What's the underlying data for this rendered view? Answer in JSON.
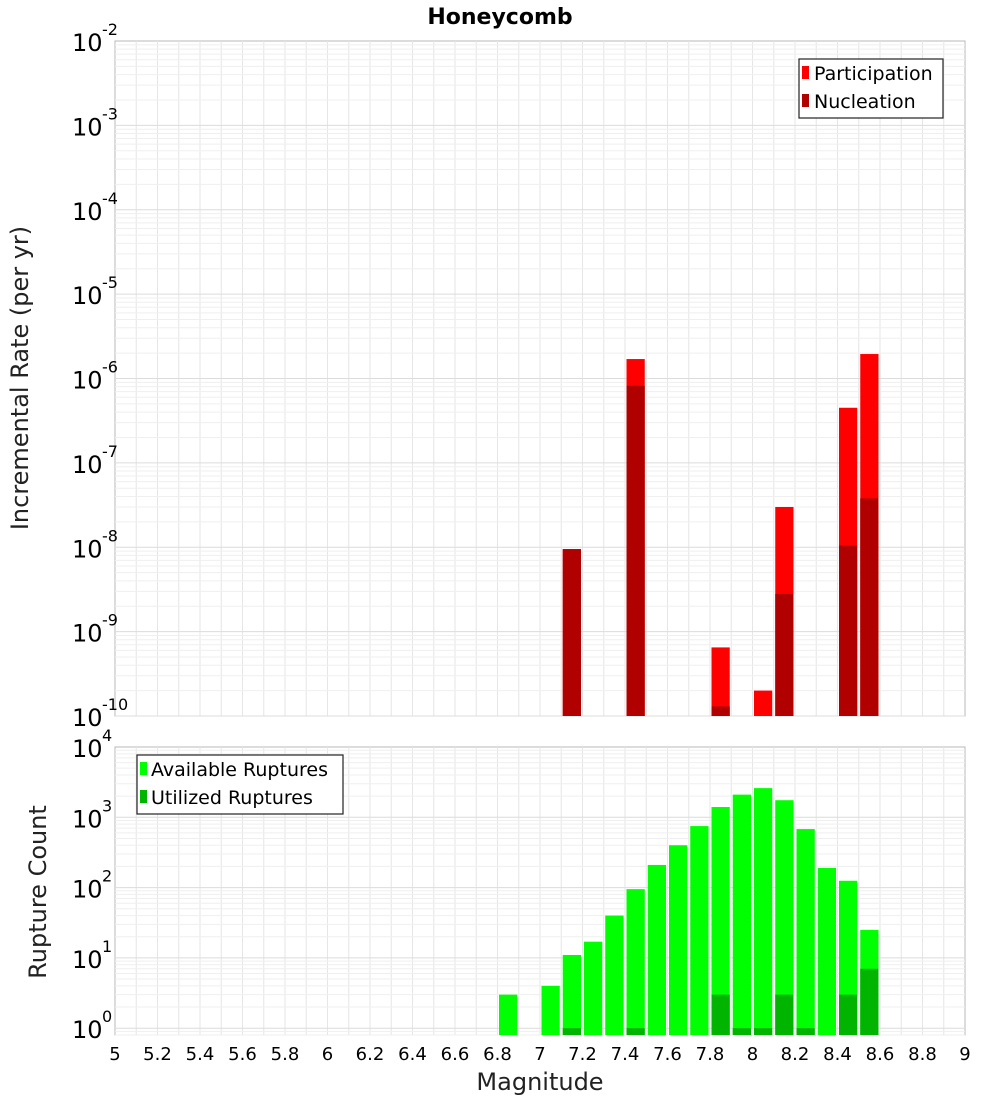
{
  "title": "Honeycomb",
  "chart_data": [
    {
      "type": "bar",
      "stacked_overlay": true,
      "title": "Honeycomb",
      "xlabel": "",
      "ylabel": "Incremental Rate (per yr)",
      "yscale": "log",
      "ylim": [
        1e-10,
        0.01
      ],
      "xlim": [
        5,
        9
      ],
      "bin_width": 0.1,
      "grid": true,
      "legend_position": "top-right",
      "ytick_exponents": [
        "-10",
        "-9",
        "-8",
        "-7",
        "-6",
        "-5",
        "-4",
        "-3",
        "-2"
      ],
      "series": [
        {
          "name": "Participation",
          "color": "#ff0000",
          "x": [
            7.15,
            7.45,
            7.85,
            8.05,
            8.15,
            8.45,
            8.55
          ],
          "values": [
            9.5e-09,
            1.7e-06,
            6.5e-10,
            2e-10,
            3e-08,
            4.5e-07,
            1.95e-06
          ]
        },
        {
          "name": "Nucleation",
          "color": "#b00000",
          "x": [
            7.15,
            7.45,
            7.85,
            8.15,
            8.45,
            8.55
          ],
          "values": [
            9.5e-09,
            8.2e-07,
            1.3e-10,
            2.8e-09,
            1.05e-08,
            3.8e-08
          ]
        }
      ]
    },
    {
      "type": "bar",
      "stacked_overlay": true,
      "title": "",
      "xlabel": "Magnitude",
      "ylabel": "Rupture Count",
      "yscale": "log",
      "ylim": [
        0.8,
        10000
      ],
      "xlim": [
        5,
        9
      ],
      "bin_width": 0.1,
      "grid": true,
      "legend_position": "top-left",
      "ytick_exponents": [
        "0",
        "1",
        "2",
        "3",
        "4"
      ],
      "xticks": [
        "5",
        "5.2",
        "5.4",
        "5.6",
        "5.8",
        "6",
        "6.2",
        "6.4",
        "6.6",
        "6.8",
        "7",
        "7.2",
        "7.4",
        "7.6",
        "7.8",
        "8",
        "8.2",
        "8.4",
        "8.6",
        "8.8",
        "9"
      ],
      "series": [
        {
          "name": "Available Ruptures",
          "color": "#00ff00",
          "x": [
            6.85,
            7.05,
            7.15,
            7.25,
            7.35,
            7.45,
            7.55,
            7.65,
            7.75,
            7.85,
            7.95,
            8.05,
            8.15,
            8.25,
            8.35,
            8.45,
            8.55
          ],
          "values": [
            3,
            4,
            11,
            17,
            40,
            95,
            210,
            400,
            750,
            1400,
            2100,
            2600,
            1750,
            680,
            190,
            125,
            25
          ]
        },
        {
          "name": "Utilized Ruptures",
          "color": "#00b400",
          "x": [
            7.15,
            7.45,
            7.85,
            7.95,
            8.05,
            8.15,
            8.25,
            8.45,
            8.55
          ],
          "values": [
            1,
            1,
            3,
            1,
            1,
            3,
            1,
            3,
            7
          ]
        }
      ]
    }
  ]
}
